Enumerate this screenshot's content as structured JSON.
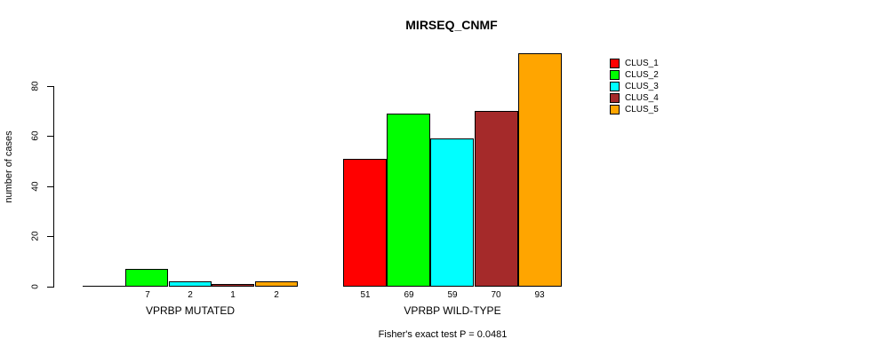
{
  "title": "MIRSEQ_CNMF",
  "chart_data": {
    "type": "bar",
    "title": "MIRSEQ_CNMF",
    "xlabel": "",
    "ylabel": "number of cases",
    "annotation": "Fisher's exact test P = 0.0481",
    "yticks": [
      0,
      20,
      40,
      60,
      80
    ],
    "ylim": [
      0,
      93
    ],
    "grid": false,
    "legend_position": "right",
    "clusters": [
      {
        "name": "CLUS_1",
        "color": "#FF0000"
      },
      {
        "name": "CLUS_2",
        "color": "#00FF00"
      },
      {
        "name": "CLUS_3",
        "color": "#00FFFF"
      },
      {
        "name": "CLUS_4",
        "color": "#A52A2A"
      },
      {
        "name": "CLUS_5",
        "color": "#FFA500"
      }
    ],
    "groups": [
      {
        "label": "VPRBP MUTATED",
        "values": [
          0,
          7,
          2,
          1,
          2
        ],
        "value_labels": [
          "",
          "7",
          "2",
          "1",
          "2"
        ]
      },
      {
        "label": "VPRBP WILD-TYPE",
        "values": [
          51,
          69,
          59,
          70,
          93
        ],
        "value_labels": [
          "51",
          "69",
          "59",
          "70",
          "93"
        ]
      }
    ]
  }
}
